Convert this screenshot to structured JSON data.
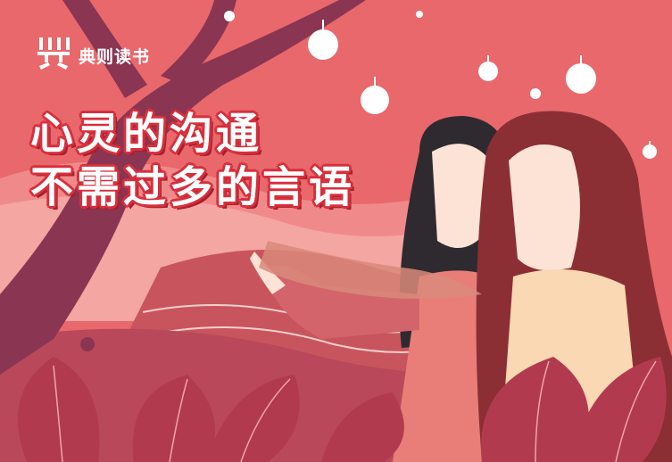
{
  "brand": {
    "name": "典则读书",
    "logo_icon": "book-logo-icon"
  },
  "headline": {
    "line1": "心灵的沟通",
    "line2": "不需过多的言语"
  },
  "colors": {
    "background": "#e56b6f",
    "headline_outline": "#d72f3c",
    "tree": "#8a3552",
    "leaves": "#b23a4f"
  }
}
